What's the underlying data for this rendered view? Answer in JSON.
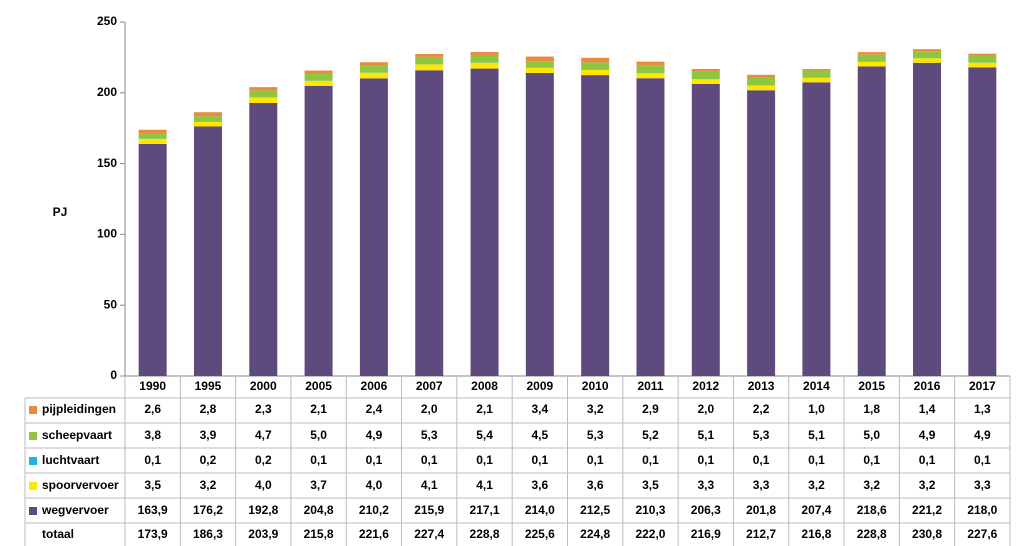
{
  "chart_data": {
    "type": "stacked-bar",
    "y_label": "PJ",
    "categories": [
      "1990",
      "1995",
      "2000",
      "2005",
      "2006",
      "2007",
      "2008",
      "2009",
      "2010",
      "2011",
      "2012",
      "2013",
      "2014",
      "2015",
      "2016",
      "2017"
    ],
    "ylim": [
      0,
      250
    ],
    "yticks": [
      0,
      50,
      100,
      150,
      200,
      250
    ],
    "series": [
      {
        "name": "wegvervoer",
        "color": "#5f4a7d",
        "values": [
          163.9,
          176.2,
          192.8,
          204.8,
          210.2,
          215.9,
          217.1,
          214.0,
          212.5,
          210.3,
          206.3,
          201.8,
          207.4,
          218.6,
          221.2,
          218.0
        ],
        "value_labels": [
          "163,9",
          "176,2",
          "192,8",
          "204,8",
          "210,2",
          "215,9",
          "217,1",
          "214,0",
          "212,5",
          "210,3",
          "206,3",
          "201,8",
          "207,4",
          "218,6",
          "221,2",
          "218,0"
        ]
      },
      {
        "name": "spoorvervoer",
        "color": "#ffe600",
        "values": [
          3.5,
          3.2,
          4.0,
          3.7,
          4.0,
          4.1,
          4.1,
          3.6,
          3.6,
          3.5,
          3.3,
          3.3,
          3.2,
          3.2,
          3.2,
          3.3
        ],
        "value_labels": [
          "3,5",
          "3,2",
          "4,0",
          "3,7",
          "4,0",
          "4,1",
          "4,1",
          "3,6",
          "3,6",
          "3,5",
          "3,3",
          "3,3",
          "3,2",
          "3,2",
          "3,2",
          "3,3"
        ]
      },
      {
        "name": "luchtvaart",
        "color": "#1fb3e0",
        "values": [
          0.1,
          0.2,
          0.2,
          0.1,
          0.1,
          0.1,
          0.1,
          0.1,
          0.1,
          0.1,
          0.1,
          0.1,
          0.1,
          0.1,
          0.1,
          0.1
        ],
        "value_labels": [
          "0,1",
          "0,2",
          "0,2",
          "0,1",
          "0,1",
          "0,1",
          "0,1",
          "0,1",
          "0,1",
          "0,1",
          "0,1",
          "0,1",
          "0,1",
          "0,1",
          "0,1",
          "0,1"
        ]
      },
      {
        "name": "scheepvaart",
        "color": "#8dc63f",
        "values": [
          3.8,
          3.9,
          4.7,
          5.0,
          4.9,
          5.3,
          5.4,
          4.5,
          5.3,
          5.2,
          5.1,
          5.3,
          5.1,
          5.0,
          4.9,
          4.9
        ],
        "value_labels": [
          "3,8",
          "3,9",
          "4,7",
          "5,0",
          "4,9",
          "5,3",
          "5,4",
          "4,5",
          "5,3",
          "5,2",
          "5,1",
          "5,3",
          "5,1",
          "5,0",
          "4,9",
          "4,9"
        ]
      },
      {
        "name": "pijpleidingen",
        "color": "#ea8a3f",
        "values": [
          2.6,
          2.8,
          2.3,
          2.1,
          2.4,
          2.0,
          2.1,
          3.4,
          3.2,
          2.9,
          2.0,
          2.2,
          1.0,
          1.8,
          1.4,
          1.3
        ],
        "value_labels": [
          "2,6",
          "2,8",
          "2,3",
          "2,1",
          "2,4",
          "2,0",
          "2,1",
          "3,4",
          "3,2",
          "2,9",
          "2,0",
          "2,2",
          "1,0",
          "1,8",
          "1,4",
          "1,3"
        ]
      }
    ],
    "totals": {
      "name": "totaal",
      "values": [
        173.9,
        186.3,
        203.9,
        215.8,
        221.6,
        227.4,
        228.8,
        225.6,
        224.8,
        222.0,
        216.9,
        212.7,
        216.8,
        228.8,
        230.8,
        227.6
      ],
      "value_labels": [
        "173,9",
        "186,3",
        "203,9",
        "215,8",
        "221,6",
        "227,4",
        "228,8",
        "225,6",
        "224,8",
        "222,0",
        "216,9",
        "212,7",
        "216,8",
        "228,8",
        "230,8",
        "227,6"
      ]
    }
  }
}
